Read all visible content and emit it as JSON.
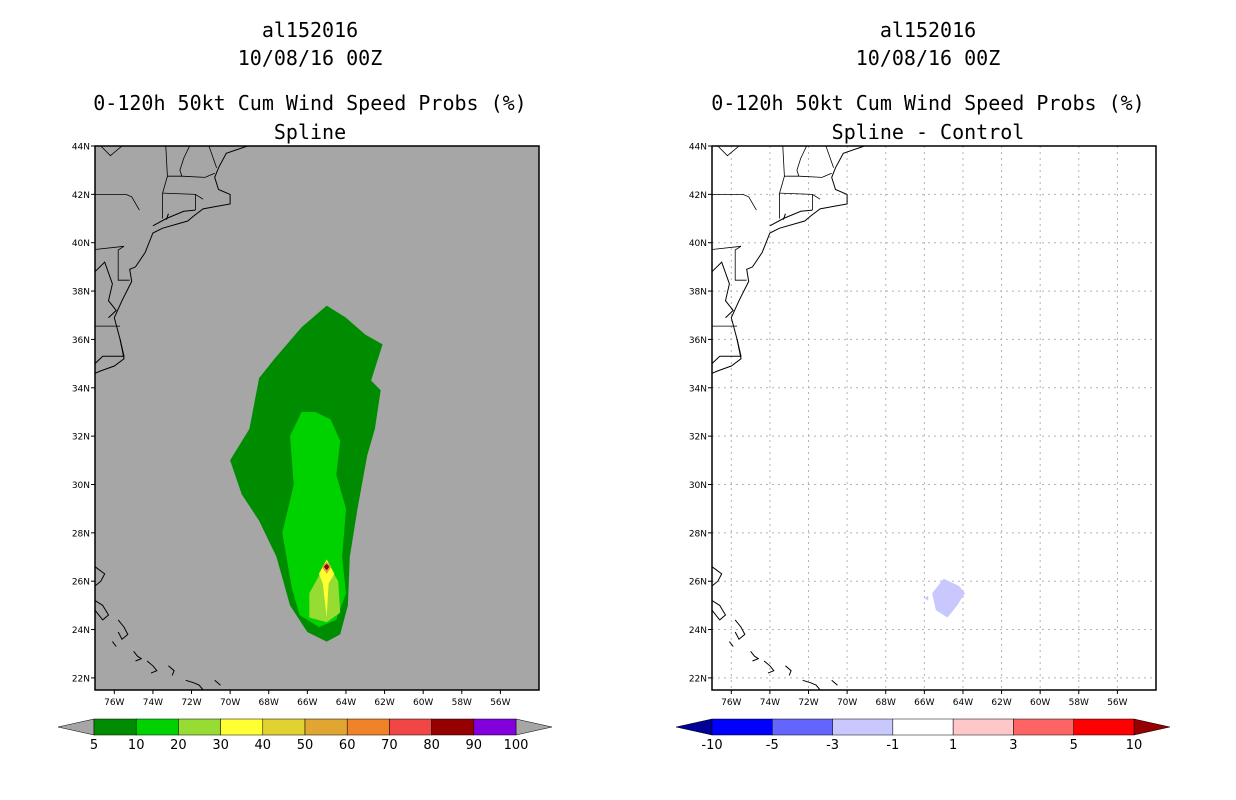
{
  "panels": [
    {
      "storm_id": "al152016",
      "datetime": "10/08/16 00Z",
      "title": "0-120h 50kt Cum Wind Speed Probs (%)",
      "subtitle": "Spline"
    },
    {
      "storm_id": "al152016",
      "datetime": "10/08/16 00Z",
      "title": "0-120h 50kt Cum Wind Speed Probs (%)",
      "subtitle": "Spline - Control"
    }
  ],
  "chart_data": [
    {
      "type": "heatmap",
      "title": "0-120h 50kt Cum Wind Speed Probs (%)",
      "subtitle": "Spline",
      "lon_range": [
        -77,
        -54
      ],
      "lat_range": [
        21.5,
        44
      ],
      "x_ticks": [
        "76W",
        "74W",
        "72W",
        "70W",
        "68W",
        "66W",
        "64W",
        "62W",
        "60W",
        "58W",
        "56W"
      ],
      "y_ticks": [
        "22N",
        "24N",
        "26N",
        "28N",
        "30N",
        "32N",
        "34N",
        "36N",
        "38N",
        "40N",
        "42N",
        "44N"
      ],
      "grid": false,
      "background": "#a6a6a6",
      "colorbar": {
        "labels": [
          "5",
          "10",
          "20",
          "30",
          "40",
          "50",
          "60",
          "70",
          "80",
          "90",
          "100"
        ],
        "colors": [
          "#008c00",
          "#00d200",
          "#96dc32",
          "#ffff32",
          "#e1d232",
          "#e1a532",
          "#f08228",
          "#f04646",
          "#960000",
          "#8200dc"
        ],
        "end_color": "#a6a6a6"
      },
      "regions": [
        {
          "level": 5,
          "color": "#008c00",
          "points": [
            [
              -67.7,
              35.2
            ],
            [
              -66.3,
              36.5
            ],
            [
              -65.0,
              37.4
            ],
            [
              -64.0,
              36.9
            ],
            [
              -63.0,
              36.2
            ],
            [
              -62.1,
              35.8
            ],
            [
              -62.7,
              34.3
            ],
            [
              -62.2,
              33.9
            ],
            [
              -62.5,
              32.3
            ],
            [
              -62.9,
              31.2
            ],
            [
              -63.4,
              29.0
            ],
            [
              -63.8,
              27.0
            ],
            [
              -63.9,
              25.0
            ],
            [
              -64.3,
              23.8
            ],
            [
              -65.0,
              23.5
            ],
            [
              -66.0,
              23.9
            ],
            [
              -66.9,
              25.0
            ],
            [
              -67.6,
              27.0
            ],
            [
              -68.5,
              28.5
            ],
            [
              -69.4,
              29.6
            ],
            [
              -70.0,
              31.0
            ],
            [
              -69.0,
              32.3
            ],
            [
              -68.5,
              34.4
            ]
          ]
        },
        {
          "level": 10,
          "color": "#00d200",
          "points": [
            [
              -66.3,
              33.0
            ],
            [
              -65.6,
              33.0
            ],
            [
              -64.8,
              32.7
            ],
            [
              -64.3,
              31.8
            ],
            [
              -64.5,
              30.4
            ],
            [
              -64.0,
              29.0
            ],
            [
              -64.2,
              27.0
            ],
            [
              -64.0,
              25.5
            ],
            [
              -64.5,
              24.4
            ],
            [
              -65.4,
              24.1
            ],
            [
              -66.4,
              24.6
            ],
            [
              -66.8,
              25.7
            ],
            [
              -67.3,
              28.0
            ],
            [
              -66.7,
              30.0
            ],
            [
              -66.9,
              32.0
            ]
          ]
        },
        {
          "level": 20,
          "color": "#96dc32",
          "points": [
            [
              -65.0,
              26.8
            ],
            [
              -64.4,
              26.0
            ],
            [
              -64.3,
              24.7
            ],
            [
              -65.0,
              24.3
            ],
            [
              -65.9,
              24.5
            ],
            [
              -65.9,
              25.5
            ]
          ]
        },
        {
          "level": 30,
          "color": "#ffff32",
          "points": [
            [
              -65.0,
              26.9
            ],
            [
              -64.6,
              26.3
            ],
            [
              -64.9,
              25.9
            ],
            [
              -65.0,
              24.5
            ],
            [
              -65.2,
              25.9
            ],
            [
              -65.4,
              26.3
            ]
          ]
        },
        {
          "level": 50,
          "color": "#e1a532",
          "points": [
            [
              -65.0,
              26.8
            ],
            [
              -64.75,
              26.6
            ],
            [
              -65.0,
              26.3
            ],
            [
              -65.25,
              26.6
            ]
          ]
        },
        {
          "level": 80,
          "color": "#960000",
          "points": [
            [
              -65.0,
              26.72
            ],
            [
              -64.86,
              26.6
            ],
            [
              -65.0,
              26.45
            ],
            [
              -65.14,
              26.6
            ]
          ]
        },
        {
          "level": 90,
          "color": "#8200dc",
          "points": [
            [
              -65.0,
              26.63
            ],
            [
              -64.96,
              26.6
            ],
            [
              -65.0,
              26.55
            ],
            [
              -65.04,
              26.6
            ]
          ]
        }
      ]
    },
    {
      "type": "heatmap",
      "title": "0-120h 50kt Cum Wind Speed Probs (%)",
      "subtitle": "Spline - Control",
      "lon_range": [
        -77,
        -54
      ],
      "lat_range": [
        21.5,
        44
      ],
      "x_ticks": [
        "76W",
        "74W",
        "72W",
        "70W",
        "68W",
        "66W",
        "64W",
        "62W",
        "60W",
        "58W",
        "56W"
      ],
      "y_ticks": [
        "22N",
        "24N",
        "26N",
        "28N",
        "30N",
        "32N",
        "34N",
        "36N",
        "38N",
        "40N",
        "42N",
        "44N"
      ],
      "grid": true,
      "background": "#ffffff",
      "colorbar": {
        "labels": [
          "-10",
          "-5",
          "-3",
          "-1",
          "1",
          "3",
          "5",
          "10"
        ],
        "colors": [
          "#0000ff",
          "#6464ff",
          "#c8c8ff",
          "#ffffff",
          "#ffc8c8",
          "#ff6464",
          "#ff0000"
        ],
        "end_colors": [
          "#000096",
          "#960000"
        ]
      },
      "regions": [
        {
          "level": -3,
          "color": "#c8c8ff",
          "points": [
            [
              -65.0,
              26.1
            ],
            [
              -64.2,
              25.8
            ],
            [
              -63.9,
              25.5
            ],
            [
              -64.3,
              25.0
            ],
            [
              -64.8,
              24.5
            ],
            [
              -65.4,
              24.8
            ],
            [
              -65.6,
              25.5
            ]
          ]
        },
        {
          "level": -3,
          "color": "#c8c8ff",
          "points": [
            [
              -66.0,
              25.3
            ],
            [
              -65.8,
              25.4
            ],
            [
              -65.8,
              25.2
            ]
          ]
        }
      ]
    }
  ]
}
